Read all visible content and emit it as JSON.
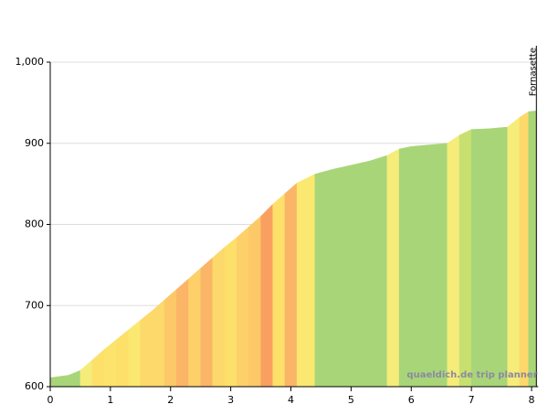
{
  "chart_data": {
    "type": "elevation-profile",
    "x": [
      0,
      0.3,
      0.5,
      0.7,
      0.9,
      1.1,
      1.3,
      1.5,
      1.7,
      1.9,
      2.1,
      2.3,
      2.5,
      2.7,
      2.9,
      3.1,
      3.3,
      3.5,
      3.7,
      3.9,
      4.1,
      4.4,
      4.7,
      5.0,
      5.3,
      5.6,
      5.8,
      6.0,
      6.3,
      6.6,
      6.8,
      7.0,
      7.3,
      7.6,
      7.8,
      7.95,
      8.08
    ],
    "values": [
      611,
      614,
      620,
      633,
      646,
      658,
      670,
      682,
      694,
      707,
      720,
      733,
      746,
      759,
      772,
      784,
      797,
      810,
      825,
      838,
      851,
      862,
      868,
      873,
      878,
      885,
      893,
      896,
      898,
      900,
      910,
      917,
      918,
      920,
      932,
      939,
      940
    ],
    "segment_colors": [
      "#a8d578",
      "#a8d578",
      "#f5ec7a",
      "#fde06a",
      "#fbe36c",
      "#fde06a",
      "#fbe870",
      "#fdd86a",
      "#fdd86a",
      "#fdc868",
      "#fbb567",
      "#fdd06a",
      "#fbb567",
      "#fdd86a",
      "#fde06a",
      "#fdd06a",
      "#fdc868",
      "#f9a060",
      "#fde06a",
      "#fbb567",
      "#fbe870",
      "#a8d578",
      "#a8d578",
      "#a8d578",
      "#a8d578",
      "#f5ec7a",
      "#a8d578",
      "#a8d578",
      "#a8d578",
      "#f5ec7a",
      "#c8e070",
      "#a8d578",
      "#a8d578",
      "#f5ec7a",
      "#fdd86a",
      "#a8d578"
    ],
    "xlim": [
      0,
      8.08
    ],
    "ylim": [
      600,
      1000
    ],
    "xticks": [
      0,
      1,
      2,
      3,
      4,
      5,
      6,
      7,
      8
    ],
    "yticks": [
      600,
      700,
      800,
      900,
      {
        "value": 1000,
        "label": "1,000"
      }
    ],
    "grid": true,
    "annotation": {
      "text": "Fornasette",
      "x": 8.08
    },
    "watermark": "quaeldich.de trip planner"
  }
}
